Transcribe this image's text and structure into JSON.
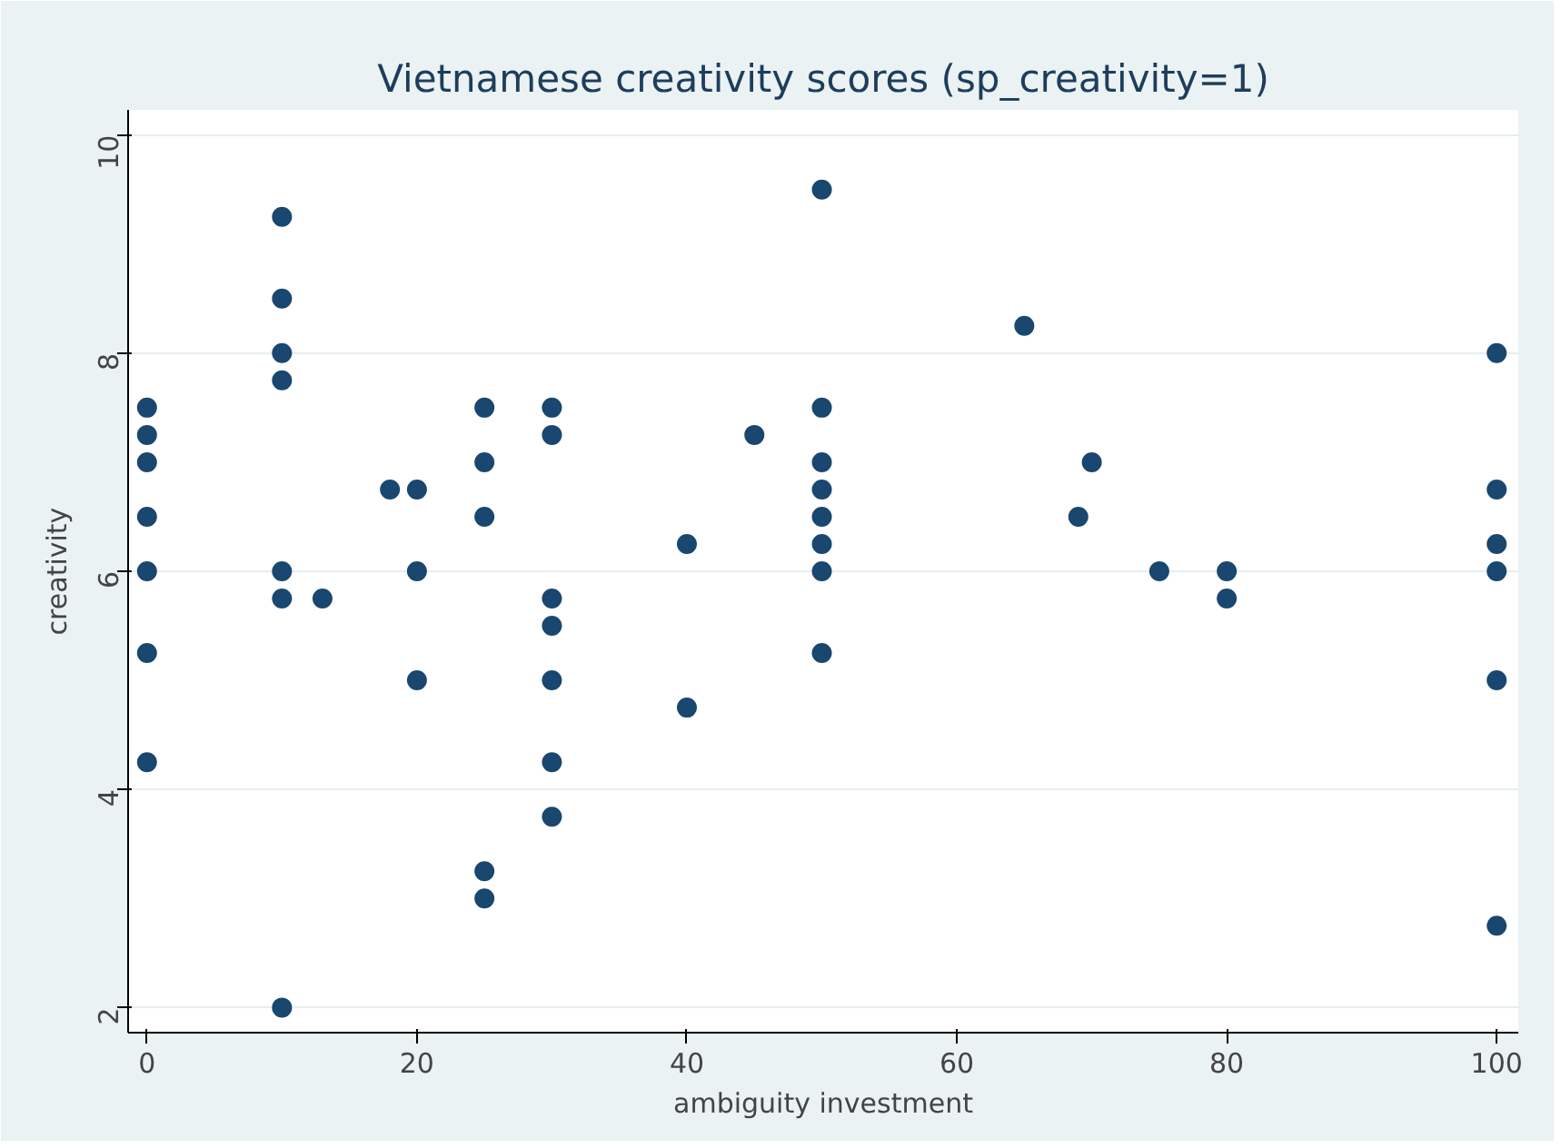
{
  "chart_data": {
    "type": "scatter",
    "title": "Vietnamese creativity scores (sp_creativity=1)",
    "xlabel": "ambiguity investment",
    "ylabel": "creativity",
    "x": [
      0,
      0,
      0,
      0,
      0,
      0,
      0,
      10,
      10,
      10,
      10,
      10,
      10,
      10,
      13,
      18,
      20,
      20,
      20,
      25,
      25,
      25,
      25,
      25,
      30,
      30,
      30,
      30,
      30,
      30,
      30,
      40,
      40,
      45,
      50,
      50,
      50,
      50,
      50,
      50,
      50,
      50,
      65,
      69,
      70,
      75,
      80,
      80,
      100,
      100,
      100,
      100,
      100,
      100
    ],
    "values": [
      7.5,
      7.25,
      7.0,
      6.5,
      6.0,
      5.25,
      4.25,
      9.25,
      8.5,
      8.0,
      7.75,
      6.0,
      5.75,
      2.0,
      5.75,
      6.75,
      6.75,
      6.0,
      5.0,
      7.5,
      7.0,
      6.5,
      3.25,
      3.0,
      7.5,
      7.25,
      5.75,
      5.5,
      5.0,
      4.25,
      3.75,
      6.25,
      4.75,
      7.25,
      9.5,
      7.5,
      7.0,
      6.75,
      6.5,
      6.25,
      6.0,
      5.25,
      8.25,
      6.5,
      7.0,
      6.0,
      6.0,
      5.75,
      8.0,
      6.75,
      6.25,
      6.0,
      5.0,
      2.75
    ],
    "color": "#1a476f",
    "marker": "circle",
    "xlim": [
      -1.4,
      101.6
    ],
    "ylim": [
      1.77,
      10.23
    ],
    "xticks": [
      0,
      20,
      40,
      60,
      80,
      100
    ],
    "yticks": [
      2,
      4,
      6,
      8,
      10
    ],
    "grid": "y"
  }
}
